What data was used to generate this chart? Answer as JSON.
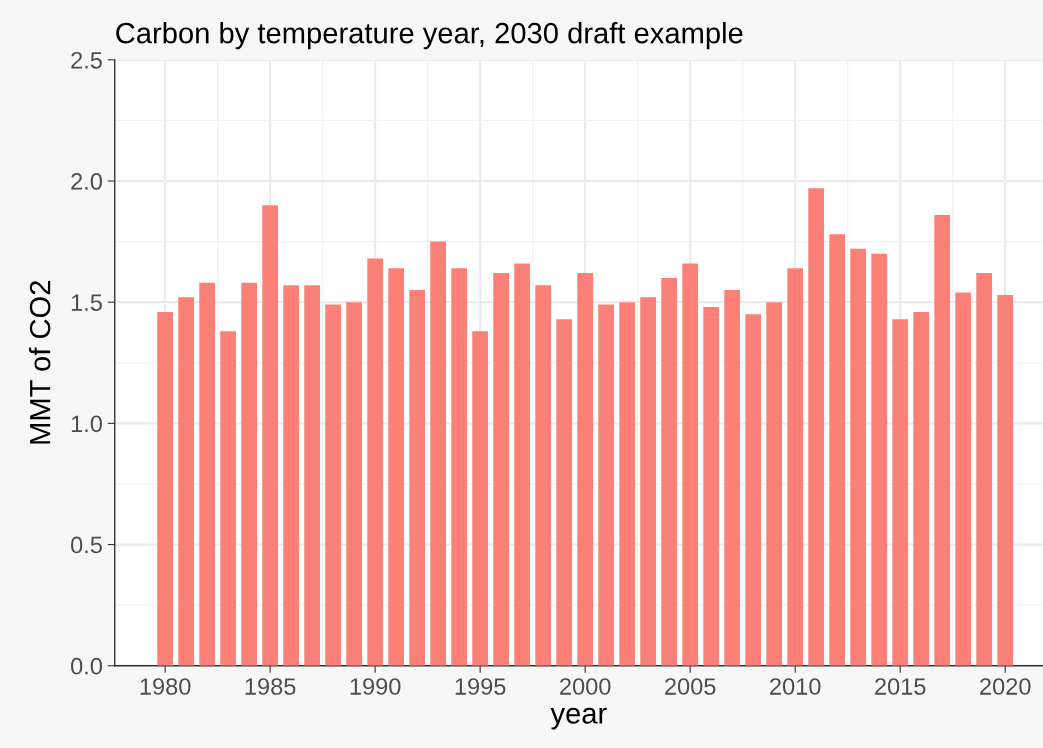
{
  "chart_data": {
    "type": "bar",
    "title": "Carbon by temperature year, 2030 draft example",
    "xlabel": "year",
    "ylabel": "MMT of CO2",
    "x": [
      1980,
      1981,
      1982,
      1983,
      1984,
      1985,
      1986,
      1987,
      1988,
      1989,
      1990,
      1991,
      1992,
      1993,
      1994,
      1995,
      1996,
      1997,
      1998,
      1999,
      2000,
      2001,
      2002,
      2003,
      2004,
      2005,
      2006,
      2007,
      2008,
      2009,
      2010,
      2011,
      2012,
      2013,
      2014,
      2015,
      2016,
      2017,
      2018,
      2019,
      2020
    ],
    "values": [
      1.46,
      1.52,
      1.58,
      1.38,
      1.58,
      1.9,
      1.57,
      1.57,
      1.49,
      1.5,
      1.68,
      1.64,
      1.55,
      1.75,
      1.64,
      1.38,
      1.62,
      1.66,
      1.57,
      1.43,
      1.62,
      1.49,
      1.5,
      1.52,
      1.6,
      1.66,
      1.48,
      1.55,
      1.45,
      1.5,
      1.64,
      1.97,
      1.78,
      1.72,
      1.7,
      1.43,
      1.46,
      1.86,
      1.54,
      1.62,
      1.53
    ],
    "color": "#fa8078",
    "xlim": [
      1977.6,
      2021.8
    ],
    "xticks": [
      1980,
      1985,
      1990,
      1995,
      2000,
      2005,
      2010,
      2015,
      2020
    ],
    "ylim": [
      0,
      2.5
    ],
    "yticks": [
      {
        "value": 0,
        "label": "0.0"
      },
      {
        "value": 0.5,
        "label": "0.5"
      },
      {
        "value": 1,
        "label": "1.0"
      },
      {
        "value": 1.5,
        "label": "1.5"
      },
      {
        "value": 2,
        "label": "2.0"
      },
      {
        "value": 2.5,
        "label": "2.5"
      }
    ],
    "grid": true,
    "legend": false
  }
}
